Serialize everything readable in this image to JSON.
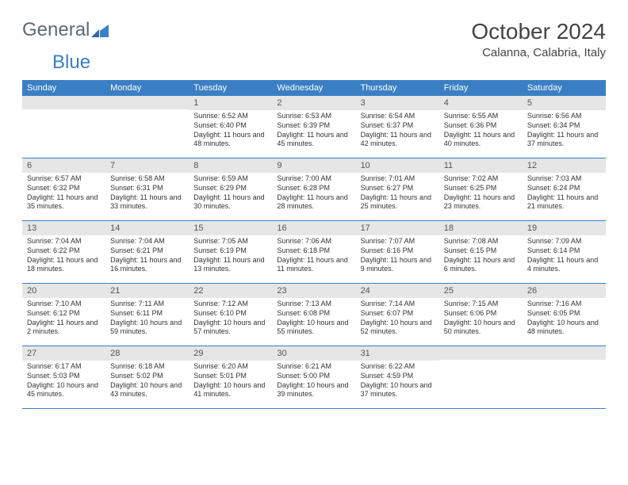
{
  "logo": {
    "part1": "General",
    "part2": "Blue"
  },
  "title": "October 2024",
  "location": "Calanna, Calabria, Italy",
  "colors": {
    "header_bg": "#3a7fc4",
    "header_fg": "#ffffff",
    "band_bg": "#e6e6e6",
    "border": "#3a7fc4",
    "text": "#333333",
    "title_text": "#444444",
    "logo_gray": "#5a6a78",
    "logo_blue": "#3a7fc4",
    "page_bg": "#ffffff"
  },
  "typography": {
    "title_fontsize": 28,
    "location_fontsize": 15,
    "weekday_fontsize": 11,
    "daynum_fontsize": 11,
    "body_fontsize": 9
  },
  "weekdays": [
    "Sunday",
    "Monday",
    "Tuesday",
    "Wednesday",
    "Thursday",
    "Friday",
    "Saturday"
  ],
  "weeks": [
    [
      null,
      null,
      {
        "n": "1",
        "sunrise": "Sunrise: 6:52 AM",
        "sunset": "Sunset: 6:40 PM",
        "day": "Daylight: 11 hours and 48 minutes."
      },
      {
        "n": "2",
        "sunrise": "Sunrise: 6:53 AM",
        "sunset": "Sunset: 6:39 PM",
        "day": "Daylight: 11 hours and 45 minutes."
      },
      {
        "n": "3",
        "sunrise": "Sunrise: 6:54 AM",
        "sunset": "Sunset: 6:37 PM",
        "day": "Daylight: 11 hours and 42 minutes."
      },
      {
        "n": "4",
        "sunrise": "Sunrise: 6:55 AM",
        "sunset": "Sunset: 6:36 PM",
        "day": "Daylight: 11 hours and 40 minutes."
      },
      {
        "n": "5",
        "sunrise": "Sunrise: 6:56 AM",
        "sunset": "Sunset: 6:34 PM",
        "day": "Daylight: 11 hours and 37 minutes."
      }
    ],
    [
      {
        "n": "6",
        "sunrise": "Sunrise: 6:57 AM",
        "sunset": "Sunset: 6:32 PM",
        "day": "Daylight: 11 hours and 35 minutes."
      },
      {
        "n": "7",
        "sunrise": "Sunrise: 6:58 AM",
        "sunset": "Sunset: 6:31 PM",
        "day": "Daylight: 11 hours and 33 minutes."
      },
      {
        "n": "8",
        "sunrise": "Sunrise: 6:59 AM",
        "sunset": "Sunset: 6:29 PM",
        "day": "Daylight: 11 hours and 30 minutes."
      },
      {
        "n": "9",
        "sunrise": "Sunrise: 7:00 AM",
        "sunset": "Sunset: 6:28 PM",
        "day": "Daylight: 11 hours and 28 minutes."
      },
      {
        "n": "10",
        "sunrise": "Sunrise: 7:01 AM",
        "sunset": "Sunset: 6:27 PM",
        "day": "Daylight: 11 hours and 25 minutes."
      },
      {
        "n": "11",
        "sunrise": "Sunrise: 7:02 AM",
        "sunset": "Sunset: 6:25 PM",
        "day": "Daylight: 11 hours and 23 minutes."
      },
      {
        "n": "12",
        "sunrise": "Sunrise: 7:03 AM",
        "sunset": "Sunset: 6:24 PM",
        "day": "Daylight: 11 hours and 21 minutes."
      }
    ],
    [
      {
        "n": "13",
        "sunrise": "Sunrise: 7:04 AM",
        "sunset": "Sunset: 6:22 PM",
        "day": "Daylight: 11 hours and 18 minutes."
      },
      {
        "n": "14",
        "sunrise": "Sunrise: 7:04 AM",
        "sunset": "Sunset: 6:21 PM",
        "day": "Daylight: 11 hours and 16 minutes."
      },
      {
        "n": "15",
        "sunrise": "Sunrise: 7:05 AM",
        "sunset": "Sunset: 6:19 PM",
        "day": "Daylight: 11 hours and 13 minutes."
      },
      {
        "n": "16",
        "sunrise": "Sunrise: 7:06 AM",
        "sunset": "Sunset: 6:18 PM",
        "day": "Daylight: 11 hours and 11 minutes."
      },
      {
        "n": "17",
        "sunrise": "Sunrise: 7:07 AM",
        "sunset": "Sunset: 6:16 PM",
        "day": "Daylight: 11 hours and 9 minutes."
      },
      {
        "n": "18",
        "sunrise": "Sunrise: 7:08 AM",
        "sunset": "Sunset: 6:15 PM",
        "day": "Daylight: 11 hours and 6 minutes."
      },
      {
        "n": "19",
        "sunrise": "Sunrise: 7:09 AM",
        "sunset": "Sunset: 6:14 PM",
        "day": "Daylight: 11 hours and 4 minutes."
      }
    ],
    [
      {
        "n": "20",
        "sunrise": "Sunrise: 7:10 AM",
        "sunset": "Sunset: 6:12 PM",
        "day": "Daylight: 11 hours and 2 minutes."
      },
      {
        "n": "21",
        "sunrise": "Sunrise: 7:11 AM",
        "sunset": "Sunset: 6:11 PM",
        "day": "Daylight: 10 hours and 59 minutes."
      },
      {
        "n": "22",
        "sunrise": "Sunrise: 7:12 AM",
        "sunset": "Sunset: 6:10 PM",
        "day": "Daylight: 10 hours and 57 minutes."
      },
      {
        "n": "23",
        "sunrise": "Sunrise: 7:13 AM",
        "sunset": "Sunset: 6:08 PM",
        "day": "Daylight: 10 hours and 55 minutes."
      },
      {
        "n": "24",
        "sunrise": "Sunrise: 7:14 AM",
        "sunset": "Sunset: 6:07 PM",
        "day": "Daylight: 10 hours and 52 minutes."
      },
      {
        "n": "25",
        "sunrise": "Sunrise: 7:15 AM",
        "sunset": "Sunset: 6:06 PM",
        "day": "Daylight: 10 hours and 50 minutes."
      },
      {
        "n": "26",
        "sunrise": "Sunrise: 7:16 AM",
        "sunset": "Sunset: 6:05 PM",
        "day": "Daylight: 10 hours and 48 minutes."
      }
    ],
    [
      {
        "n": "27",
        "sunrise": "Sunrise: 6:17 AM",
        "sunset": "Sunset: 5:03 PM",
        "day": "Daylight: 10 hours and 45 minutes."
      },
      {
        "n": "28",
        "sunrise": "Sunrise: 6:18 AM",
        "sunset": "Sunset: 5:02 PM",
        "day": "Daylight: 10 hours and 43 minutes."
      },
      {
        "n": "29",
        "sunrise": "Sunrise: 6:20 AM",
        "sunset": "Sunset: 5:01 PM",
        "day": "Daylight: 10 hours and 41 minutes."
      },
      {
        "n": "30",
        "sunrise": "Sunrise: 6:21 AM",
        "sunset": "Sunset: 5:00 PM",
        "day": "Daylight: 10 hours and 39 minutes."
      },
      {
        "n": "31",
        "sunrise": "Sunrise: 6:22 AM",
        "sunset": "Sunset: 4:59 PM",
        "day": "Daylight: 10 hours and 37 minutes."
      },
      null,
      null
    ]
  ]
}
